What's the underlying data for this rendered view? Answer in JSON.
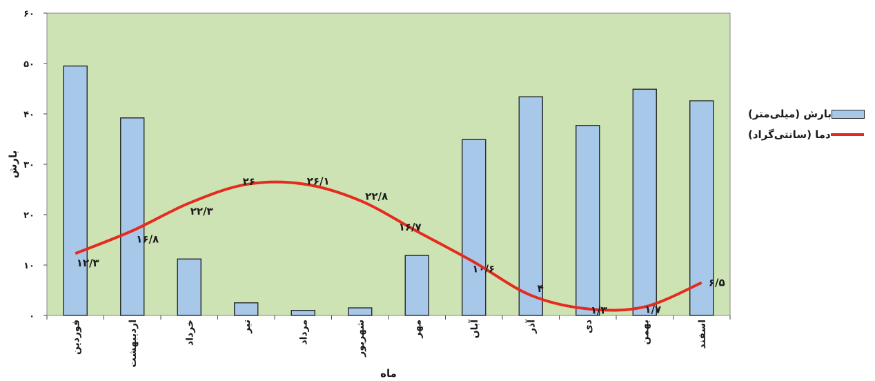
{
  "chart_data": {
    "type": "bar+line",
    "categories": [
      "فوردین",
      "اردیبهشت",
      "خرداد",
      "تیر",
      "مرداد",
      "شهریور",
      "مهر",
      "آبان",
      "آذر",
      "دی",
      "بهمن",
      "اسفند"
    ],
    "series": [
      {
        "name": "بارش (میلی‌متر)",
        "type": "bar",
        "values": [
          49.5,
          39.2,
          11.2,
          2.5,
          1.0,
          1.5,
          11.9,
          34.9,
          43.4,
          37.7,
          44.9,
          42.6
        ],
        "color": "#a8c8ea"
      },
      {
        "name": "دما (سانتی‌گراد)",
        "type": "line",
        "values": [
          12.3,
          16.8,
          22.3,
          26,
          26.1,
          22.8,
          16.7,
          10.6,
          4,
          1.3,
          1.7,
          6.5
        ],
        "color": "#e52a1e",
        "labels": [
          "۱۲/۳",
          "۱۶/۸",
          "۲۲/۳",
          "۲۶",
          "۲۶/۱",
          "۲۲/۸",
          "۱۶/۷",
          "۱۰/۶",
          "۴",
          "۱/۳",
          "۱/۷",
          "۶/۵"
        ]
      }
    ],
    "ylim": [
      0,
      60
    ],
    "yticks": [
      "۰",
      "۱۰",
      "۲۰",
      "۳۰",
      "۴۰",
      "۵۰",
      "۶۰"
    ],
    "ylabel": "بارش",
    "xlabel": "ماه",
    "plot_background": "#cde3b4",
    "legend_position": "right"
  }
}
